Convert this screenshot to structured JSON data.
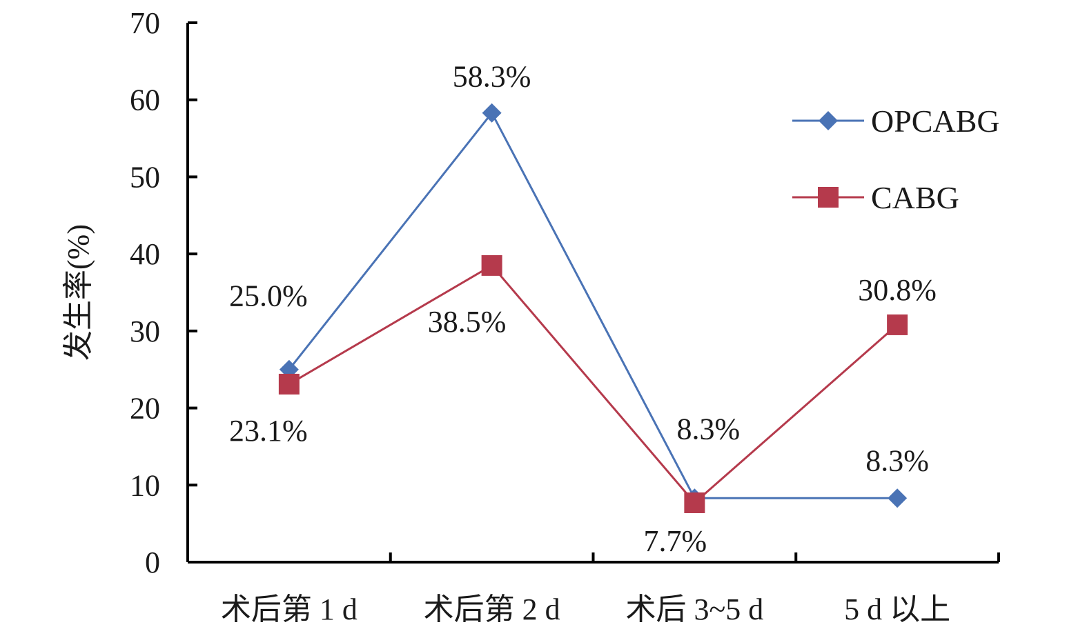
{
  "chart_data": {
    "type": "line",
    "title": "",
    "xlabel": "",
    "ylabel": "发生率(%)",
    "ylim": [
      0,
      70
    ],
    "yticks": [
      0,
      10,
      20,
      30,
      40,
      50,
      60,
      70
    ],
    "categories": [
      "术后第 1 d",
      "术后第 2 d",
      "术后 3~5 d",
      "5 d 以上"
    ],
    "grid": false,
    "legend_position": "right",
    "series": [
      {
        "name": "OPCABG",
        "color": "#4a73b5",
        "marker": "diamond",
        "values": [
          25.0,
          58.3,
          8.3,
          8.3
        ],
        "labels": [
          "25.0%",
          "58.3%",
          "8.3%",
          "8.3%"
        ]
      },
      {
        "name": "CABG",
        "color": "#b53a4c",
        "marker": "square",
        "values": [
          23.1,
          38.5,
          7.7,
          30.8
        ],
        "labels": [
          "23.1%",
          "38.5%",
          "7.7%",
          "30.8%"
        ]
      }
    ]
  }
}
